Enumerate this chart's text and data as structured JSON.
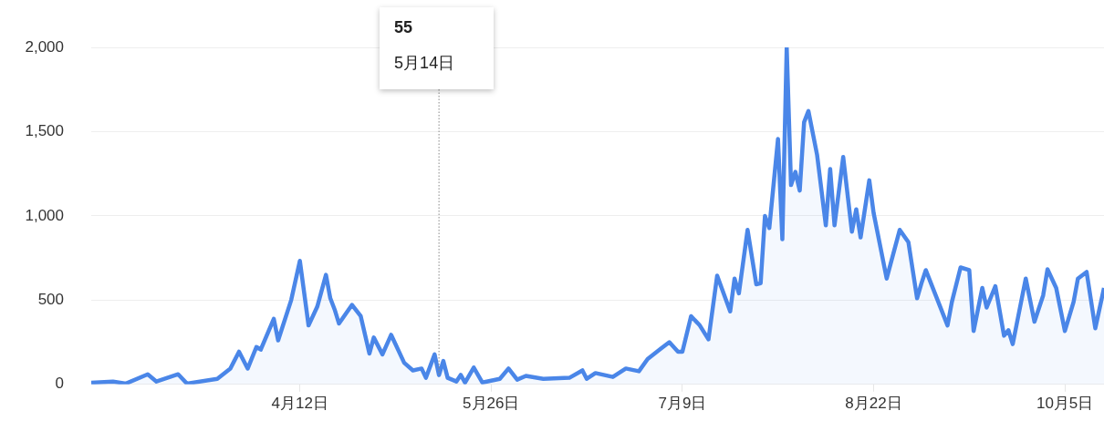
{
  "chart_data": {
    "type": "area",
    "x": [
      "--02-24",
      "--02-29",
      "--03-03",
      "--03-08",
      "--03-10",
      "--03-15",
      "--03-17",
      "--03-24",
      "--03-27",
      "--03-29",
      "--03-31",
      "--04-02",
      "--04-03",
      "--04-06",
      "--04-07",
      "--04-10",
      "--04-12",
      "--04-14",
      "--04-16",
      "--04-18",
      "--04-19",
      "--04-20",
      "--04-21",
      "--04-24",
      "--04-26",
      "--04-28",
      "--04-29",
      "--05-01",
      "--05-03",
      "--05-06",
      "--05-08",
      "--05-10",
      "--05-11",
      "--05-13",
      "--05-14",
      "--05-15",
      "--05-16",
      "--05-18",
      "--05-19",
      "--05-20",
      "--05-22",
      "--05-24",
      "--05-28",
      "--05-30",
      "--06-01",
      "--06-03",
      "--06-07",
      "--06-13",
      "--06-16",
      "--06-17",
      "--06-19",
      "--06-23",
      "--06-26",
      "--06-29",
      "--07-01",
      "--07-04",
      "--07-06",
      "--07-08",
      "--07-09",
      "--07-11",
      "--07-13",
      "--07-15",
      "--07-17",
      "--07-20",
      "--07-21",
      "--07-22",
      "--07-24",
      "--07-26",
      "--07-27",
      "--07-28",
      "--07-29",
      "--07-31",
      "--08-01",
      "--08-02",
      "--08-03",
      "--08-04",
      "--08-05",
      "--08-06",
      "--08-07",
      "--08-09",
      "--08-11",
      "--08-12",
      "--08-13",
      "--08-15",
      "--08-17",
      "--08-18",
      "--08-19",
      "--08-21",
      "--08-22",
      "--08-25",
      "--08-28",
      "--08-30",
      "--09-01",
      "--09-02",
      "--09-03",
      "--09-08",
      "--09-09",
      "--09-11",
      "--09-13",
      "--09-14",
      "--09-16",
      "--09-17",
      "--09-19",
      "--09-21",
      "--09-22",
      "--09-23",
      "--09-26",
      "--09-28",
      "--09-30",
      "--10-01",
      "--10-03",
      "--10-05",
      "--10-07",
      "--10-08",
      "--10-10",
      "--10-12",
      "--10-14"
    ],
    "series": [
      {
        "color": "#4a86e8",
        "values": [
          10,
          17,
          5,
          60,
          17,
          60,
          5,
          33,
          94,
          194,
          94,
          222,
          206,
          389,
          261,
          500,
          733,
          350,
          461,
          650,
          511,
          444,
          361,
          472,
          405,
          183,
          278,
          178,
          294,
          128,
          83,
          94,
          39,
          178,
          55,
          139,
          39,
          17,
          56,
          11,
          100,
          11,
          33,
          94,
          28,
          50,
          33,
          39,
          83,
          33,
          67,
          44,
          94,
          78,
          150,
          211,
          250,
          194,
          194,
          405,
          350,
          267,
          645,
          433,
          628,
          540,
          917,
          594,
          600,
          1000,
          928,
          1456,
          861,
          2000,
          1183,
          1261,
          1150,
          1556,
          1622,
          1361,
          944,
          1278,
          944,
          1350,
          906,
          1039,
          872,
          1211,
          1017,
          628,
          917,
          844,
          511,
          600,
          678,
          350,
          489,
          694,
          678,
          317,
          572,
          456,
          583,
          289,
          322,
          239,
          628,
          372,
          528,
          683,
          572,
          317,
          489,
          628,
          667,
          333,
          572
        ]
      }
    ],
    "xlim": [
      "--02-24",
      "--10-14"
    ],
    "xticks": [
      {
        "value": "--04-12",
        "label": "4月12日"
      },
      {
        "value": "--05-26",
        "label": "5月26日"
      },
      {
        "value": "--07-09",
        "label": "7月9日"
      },
      {
        "value": "--08-22",
        "label": "8月22日"
      },
      {
        "value": "--10-05",
        "label": "10月5日"
      }
    ],
    "ylim": [
      0,
      2000
    ],
    "yticks": [
      0,
      500,
      {
        "value": 1000,
        "label": "1,000"
      },
      {
        "value": 1500,
        "label": "1,500"
      },
      {
        "value": 2000,
        "label": "2,000"
      }
    ],
    "grid": "y",
    "annotations": [
      {
        "text": "55\n5月14日",
        "x": "--05-14",
        "y": 55
      }
    ]
  }
}
